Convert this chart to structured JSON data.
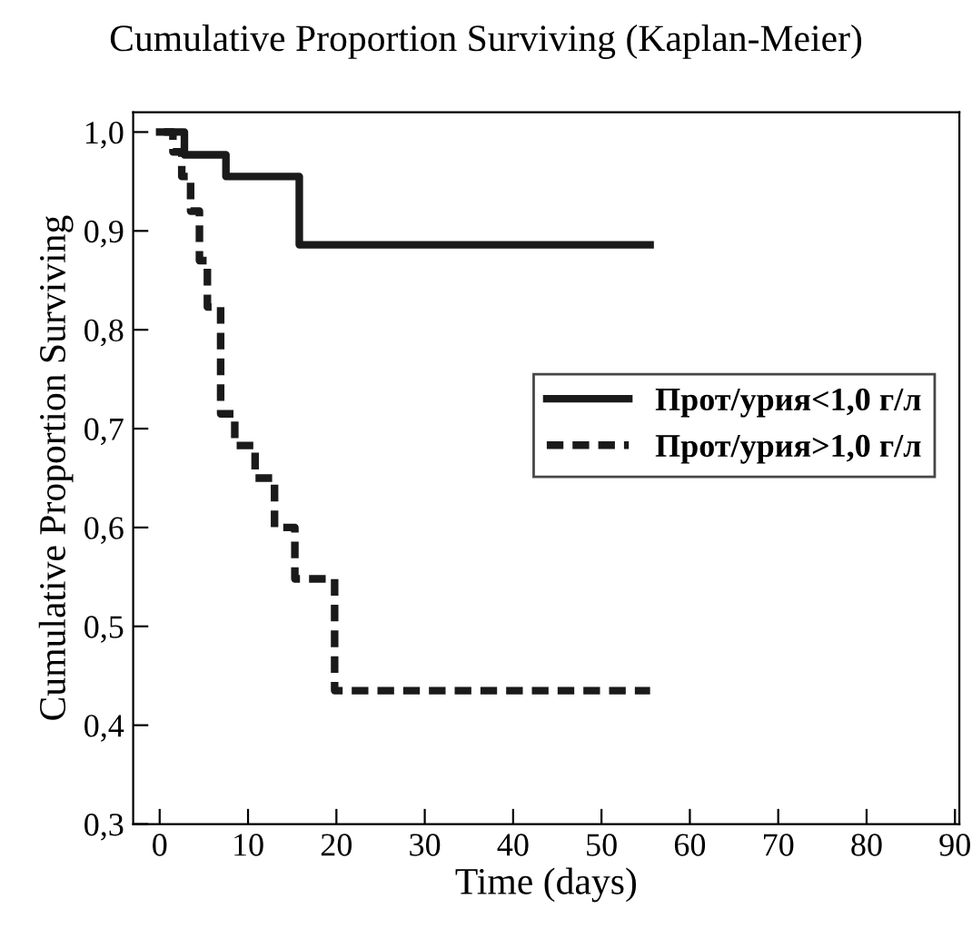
{
  "chart_data": {
    "type": "step",
    "title": "Cumulative Proportion Surviving (Kaplan-Meier)",
    "xlabel": "Time (days)",
    "ylabel": "Cumulative Proportion Surviving",
    "series": [
      {
        "name": "Прот/урия<1,0 г/л",
        "color": "#1a1a1a",
        "line_style": "solid",
        "x": [
          0,
          2.8,
          7.5,
          15.8,
          55.5
        ],
        "values": [
          1.0,
          0.977,
          0.955,
          0.886,
          0.886
        ]
      },
      {
        "name": "Прот/урия>1,0 г/л",
        "color": "#1a1a1a",
        "line_style": "dashed",
        "x": [
          0.5,
          1.5,
          2.5,
          3.5,
          4.5,
          5.4,
          6.9,
          8.5,
          10.8,
          13.0,
          15.3,
          19.8,
          55.5
        ],
        "values": [
          1.0,
          0.98,
          0.955,
          0.92,
          0.87,
          0.823,
          0.715,
          0.683,
          0.65,
          0.6,
          0.548,
          0.435,
          0.435
        ]
      }
    ],
    "xlim": [
      -3,
      90.5
    ],
    "ylim": [
      0.3,
      1.02
    ],
    "xticks": [
      0,
      10,
      20,
      30,
      40,
      50,
      60,
      70,
      80,
      90
    ],
    "yticks": [
      {
        "value": 0.3,
        "label": "0,3"
      },
      {
        "value": 0.4,
        "label": "0,4"
      },
      {
        "value": 0.5,
        "label": "0,5"
      },
      {
        "value": 0.6,
        "label": "0,6"
      },
      {
        "value": 0.7,
        "label": "0,7"
      },
      {
        "value": 0.8,
        "label": "0,8"
      },
      {
        "value": 0.9,
        "label": "0,9"
      },
      {
        "value": 1.0,
        "label": "1,0"
      }
    ],
    "grid": false,
    "legend": "right",
    "marker": "none"
  }
}
